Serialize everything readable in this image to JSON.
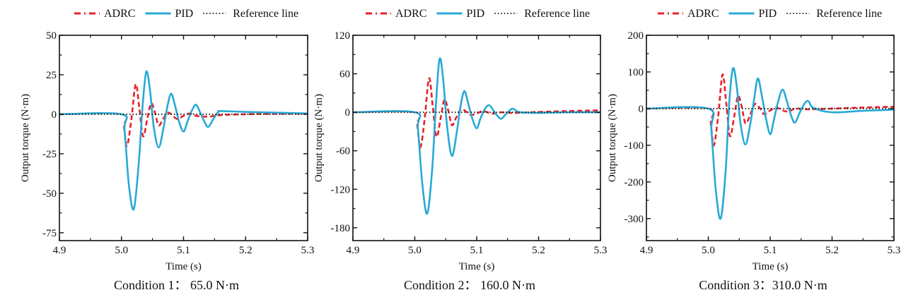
{
  "legend": {
    "items": [
      {
        "name": "ADRC",
        "style": "dashed",
        "color": "#e8202a"
      },
      {
        "name": "PID",
        "style": "solid",
        "color": "#27a9d6"
      },
      {
        "name": "Reference line",
        "style": "dotted",
        "color": "#222222"
      }
    ]
  },
  "chart_data": [
    {
      "type": "line",
      "title": "",
      "caption": "Condition 1： 65.0 N·m",
      "xlabel": "Time (s)",
      "ylabel": "Output torque (N·m)",
      "xlim": [
        4.9,
        5.3
      ],
      "ylim": [
        -80,
        50
      ],
      "xticks": [
        4.9,
        5.0,
        5.1,
        5.2,
        5.3
      ],
      "xtick_labels": [
        "4.9",
        "5.0",
        "5.1",
        "5.2",
        "5.3"
      ],
      "xminor": [
        4.95,
        5.05,
        5.15,
        5.25
      ],
      "yticks": [
        50,
        25,
        0,
        -25,
        -50,
        -75
      ],
      "ytick_labels": [
        "50",
        "25",
        "0",
        "-25",
        "-50",
        "-75"
      ],
      "yminor": [
        37.5,
        12.5,
        -12.5,
        -37.5,
        -62.5
      ],
      "grid": false,
      "legend_position": "top",
      "series": [
        {
          "name": "ADRC",
          "x": [
            4.9,
            5.0,
            5.004,
            5.009,
            5.016,
            5.023,
            5.029,
            5.035,
            5.042,
            5.048,
            5.054,
            5.06,
            5.067,
            5.075,
            5.083,
            5.09,
            5.1,
            5.11,
            5.12,
            5.14,
            5.16,
            5.2,
            5.25,
            5.3
          ],
          "y": [
            0,
            0,
            -8,
            -20,
            -3,
            19,
            3,
            -14,
            -2,
            7,
            1,
            -7,
            -3,
            1,
            -1,
            -3,
            -1,
            0.5,
            -1,
            -1.5,
            -0.5,
            0,
            0.3,
            0.3
          ]
        },
        {
          "name": "PID",
          "x": [
            4.9,
            5.0,
            5.005,
            5.012,
            5.02,
            5.028,
            5.034,
            5.04,
            5.046,
            5.052,
            5.06,
            5.068,
            5.074,
            5.08,
            5.086,
            5.093,
            5.1,
            5.106,
            5.113,
            5.12,
            5.127,
            5.134,
            5.14,
            5.148,
            5.156,
            5.16,
            5.2,
            5.25,
            5.3
          ],
          "y": [
            0,
            0,
            -10,
            -45,
            -60,
            -30,
            5,
            27,
            15,
            -8,
            -21,
            -8,
            5,
            13,
            6,
            -5,
            -11,
            -5,
            2,
            6,
            1,
            -5,
            -8,
            -3,
            1.5,
            2,
            1.5,
            1,
            0.5
          ]
        },
        {
          "name": "Reference line",
          "x": [
            4.9,
            5.3
          ],
          "y": [
            0,
            0
          ]
        }
      ]
    },
    {
      "type": "line",
      "title": "",
      "caption": "Condition 2： 160.0 N·m",
      "xlabel": "Time (s)",
      "ylabel": "Output torque (N·m)",
      "xlim": [
        4.9,
        5.3
      ],
      "ylim": [
        -200,
        120
      ],
      "xticks": [
        4.9,
        5.0,
        5.1,
        5.2,
        5.3
      ],
      "xtick_labels": [
        "4.9",
        "5.0",
        "5.1",
        "5.2",
        "5.3"
      ],
      "xminor": [
        4.95,
        5.05,
        5.15,
        5.25
      ],
      "yticks": [
        120,
        60,
        0,
        -60,
        -120,
        -180
      ],
      "ytick_labels": [
        "120",
        "60",
        "0",
        "-60",
        "-120",
        "-180"
      ],
      "yminor": [
        90,
        30,
        -30,
        -90,
        -150
      ],
      "grid": false,
      "legend_position": "top",
      "series": [
        {
          "name": "ADRC",
          "x": [
            4.9,
            5.0,
            5.004,
            5.009,
            5.016,
            5.023,
            5.029,
            5.035,
            5.042,
            5.048,
            5.054,
            5.06,
            5.067,
            5.075,
            5.083,
            5.09,
            5.1,
            5.11,
            5.12,
            5.13,
            5.14,
            5.16,
            5.2,
            5.25,
            5.3
          ],
          "y": [
            0,
            0,
            -20,
            -55,
            -10,
            53,
            10,
            -38,
            -8,
            20,
            3,
            -20,
            -8,
            5,
            1,
            -4,
            -2,
            2,
            -1,
            -2,
            0,
            -1,
            0.5,
            2,
            3
          ]
        },
        {
          "name": "PID",
          "x": [
            4.9,
            5.0,
            5.005,
            5.012,
            5.02,
            5.028,
            5.034,
            5.04,
            5.046,
            5.052,
            5.06,
            5.068,
            5.074,
            5.08,
            5.086,
            5.093,
            5.1,
            5.106,
            5.113,
            5.12,
            5.127,
            5.134,
            5.14,
            5.148,
            5.156,
            5.16,
            5.17,
            5.2,
            5.25,
            5.3
          ],
          "y": [
            0,
            0,
            -25,
            -110,
            -158,
            -90,
            10,
            83,
            50,
            -20,
            -68,
            -30,
            10,
            33,
            15,
            -10,
            -25,
            -10,
            5,
            11,
            3,
            -6,
            -10,
            -2,
            5,
            5,
            0,
            -1,
            0,
            0
          ]
        },
        {
          "name": "Reference line",
          "x": [
            4.9,
            5.3
          ],
          "y": [
            0,
            0
          ]
        }
      ]
    },
    {
      "type": "line",
      "title": "",
      "caption": "Condition 3：310.0 N·m",
      "xlabel": "Time (s)",
      "ylabel": "Output torque (N·m)",
      "xlim": [
        4.9,
        5.3
      ],
      "ylim": [
        -360,
        200
      ],
      "xticks": [
        4.9,
        5.0,
        5.1,
        5.2,
        5.3
      ],
      "xtick_labels": [
        "4.9",
        "5.0",
        "5.1",
        "5.2",
        "5.3"
      ],
      "xminor": [
        4.95,
        5.05,
        5.15,
        5.25
      ],
      "yticks": [
        200,
        100,
        0,
        -100,
        -200,
        -300
      ],
      "ytick_labels": [
        "200",
        "100",
        "0",
        "-100",
        "-200",
        "-300"
      ],
      "yminor": [
        150,
        50,
        -50,
        -150,
        -250,
        -350
      ],
      "grid": false,
      "legend_position": "top",
      "series": [
        {
          "name": "ADRC",
          "x": [
            4.9,
            5.0,
            5.004,
            5.009,
            5.016,
            5.023,
            5.029,
            5.035,
            5.042,
            5.048,
            5.054,
            5.06,
            5.067,
            5.075,
            5.083,
            5.09,
            5.1,
            5.11,
            5.12,
            5.13,
            5.14,
            5.16,
            5.2,
            5.25,
            5.3
          ],
          "y": [
            0,
            0,
            -40,
            -100,
            -20,
            93,
            15,
            -75,
            -20,
            35,
            5,
            -40,
            -20,
            12,
            2,
            -15,
            -5,
            3,
            -5,
            -8,
            0,
            -2,
            0,
            3,
            5
          ]
        },
        {
          "name": "PID",
          "x": [
            4.9,
            5.0,
            5.005,
            5.012,
            5.02,
            5.028,
            5.034,
            5.04,
            5.046,
            5.052,
            5.06,
            5.068,
            5.074,
            5.08,
            5.086,
            5.093,
            5.1,
            5.106,
            5.113,
            5.12,
            5.127,
            5.134,
            5.14,
            5.148,
            5.156,
            5.162,
            5.17,
            5.2,
            5.25,
            5.3
          ],
          "y": [
            0,
            0,
            -60,
            -220,
            -300,
            -170,
            20,
            110,
            60,
            -40,
            -98,
            -40,
            25,
            82,
            40,
            -25,
            -70,
            -30,
            20,
            52,
            20,
            -20,
            -38,
            -10,
            15,
            20,
            2,
            -10,
            -6,
            -3
          ]
        },
        {
          "name": "Reference line",
          "x": [
            4.9,
            5.3
          ],
          "y": [
            0,
            0
          ]
        }
      ]
    }
  ]
}
